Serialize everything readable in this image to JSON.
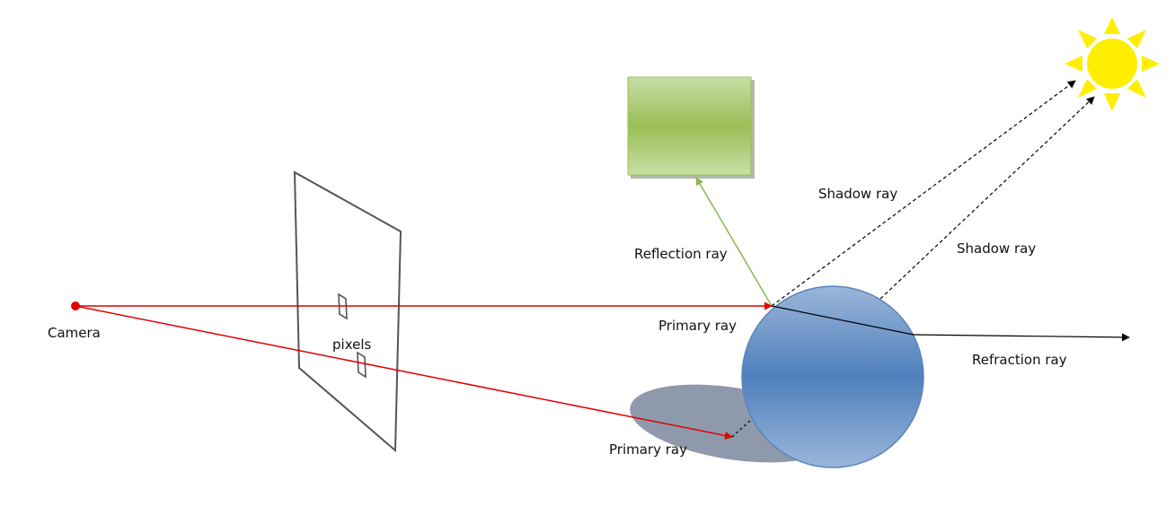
{
  "labels": {
    "camera": "Camera",
    "pixels": "pixels",
    "primary_ray_upper": "Primary ray",
    "primary_ray_lower": "Primary ray",
    "reflection_ray": "Reflection ray",
    "shadow_ray_upper": "Shadow ray",
    "shadow_ray_lower": "Shadow ray",
    "refraction_ray": "Refraction ray"
  },
  "colors": {
    "primary_ray": "#e00000",
    "reflection_ray": "#8ab84d",
    "shadow_ray": "#000000",
    "refraction_ray": "#000000",
    "sun": "#ffee00",
    "sphere_light": "#9ab6da",
    "sphere_dark": "#4f7fbc",
    "sphere_stroke": "#5a84bc",
    "shadow_ellipse": "#8e9aab",
    "box_light": "#c7dea6",
    "box_dark": "#9bbf56",
    "image_plane": "#555555"
  }
}
